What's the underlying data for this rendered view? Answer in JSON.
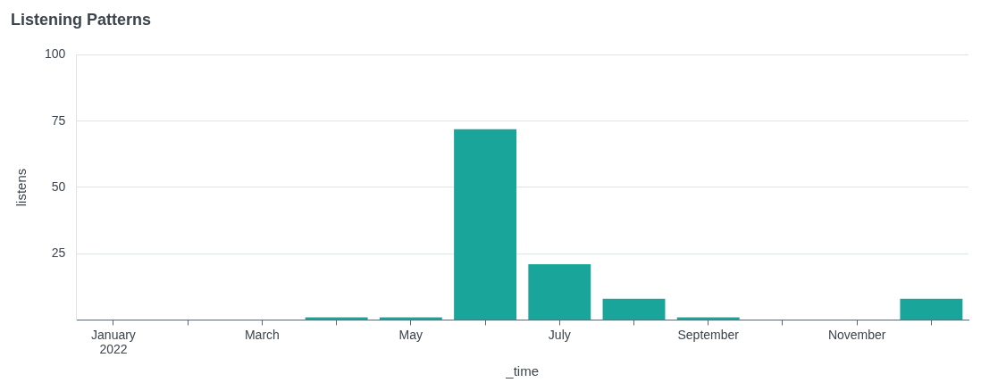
{
  "chart_data": {
    "type": "bar",
    "title": "Listening Patterns",
    "x_label": "_time",
    "y_label": "listens",
    "categories": [
      "January 2022",
      null,
      "March",
      null,
      "May",
      null,
      "July",
      null,
      "September",
      null,
      "November",
      null
    ],
    "values": [
      0,
      0,
      0,
      1,
      1,
      72,
      21,
      8,
      1,
      0,
      0,
      8
    ],
    "color": "#1aa59a",
    "ylim": [
      0,
      100
    ],
    "yticks": [
      25,
      50,
      75,
      100
    ],
    "grid": true,
    "data_labels": false
  }
}
